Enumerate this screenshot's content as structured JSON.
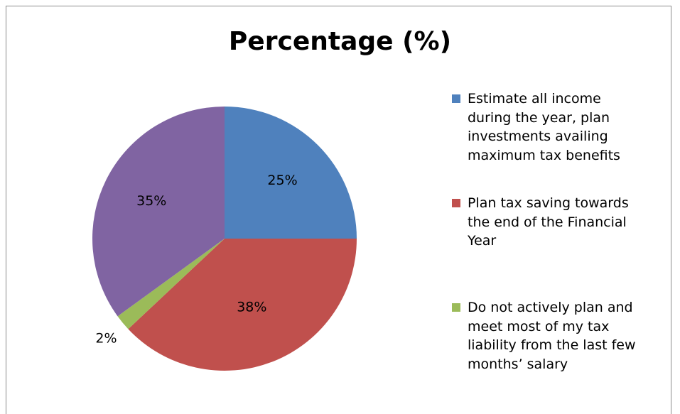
{
  "chart_data": {
    "type": "pie",
    "title": "Percentage (%)",
    "categories": [
      "Estimate all income during the year, plan investments availing maximum tax benefits",
      "Plan tax saving towards the end of the Financial Year",
      "Do not actively plan and meet most of my tax liability from the last few months’ salary",
      ""
    ],
    "values": [
      25,
      38,
      2,
      35
    ],
    "data_labels": [
      "25%",
      "38%",
      "2%",
      "35%"
    ],
    "colors": [
      "#4f81bd",
      "#c0504d",
      "#9bbb59",
      "#8064a2"
    ],
    "legend_position": "right",
    "legend": [
      {
        "lines": [
          "Estimate all income",
          "during the year, plan",
          "investments availing",
          "maximum tax benefits"
        ],
        "color": "#4f81bd"
      },
      {
        "lines": [
          "Plan tax saving towards",
          "the end of the Financial",
          "Year"
        ],
        "color": "#c0504d"
      },
      {
        "lines": [
          "Do not actively plan and",
          "meet most of my tax",
          "liability from the last few",
          "months’ salary"
        ],
        "color": "#9bbb59"
      }
    ]
  }
}
